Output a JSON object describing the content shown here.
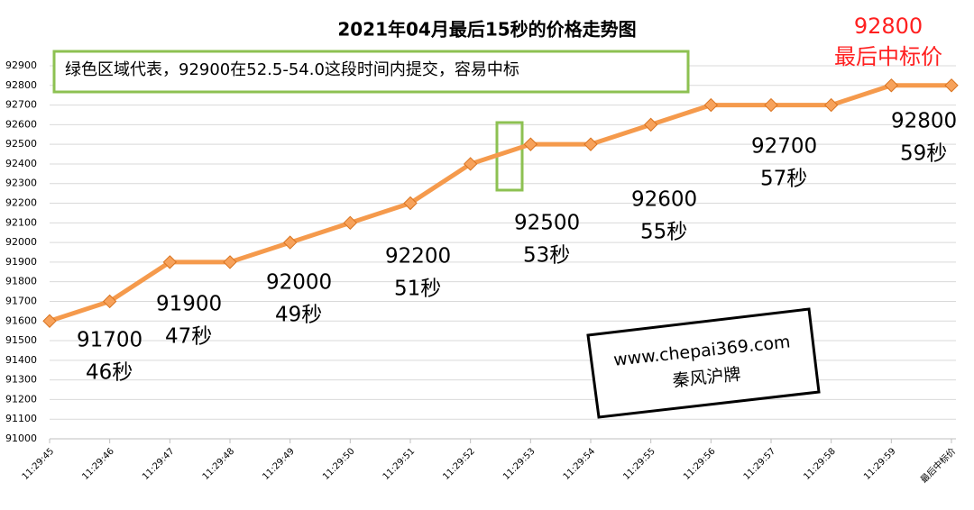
{
  "chart_data": {
    "type": "line",
    "title": "2021年04月最后15秒的价格走势图",
    "categories": [
      "11:29:45",
      "11:29:46",
      "11:29:47",
      "11:29:48",
      "11:29:49",
      "11:29:50",
      "11:29:51",
      "11:29:52",
      "11:29:53",
      "11:29:54",
      "11:29:55",
      "11:29:56",
      "11:29:57",
      "11:29:58",
      "11:29:59",
      "最后中标价"
    ],
    "values": [
      91600,
      91700,
      91900,
      91900,
      92000,
      92100,
      92200,
      92400,
      92500,
      92500,
      92600,
      92700,
      92700,
      92700,
      92800,
      92800
    ],
    "color": "#f59a4c",
    "ylim": [
      91000,
      92900
    ],
    "yticks": [
      91000,
      91100,
      91200,
      91300,
      91400,
      91500,
      91600,
      91700,
      91800,
      91900,
      92000,
      92100,
      92200,
      92300,
      92400,
      92500,
      92600,
      92700,
      92800,
      92900
    ],
    "grid": true,
    "note_box": "绿色区域代表，92900在52.5-54.0这段时间内提交，容易中标",
    "final_label": [
      "92800",
      "最后中标价"
    ],
    "annotations": [
      [
        "91700",
        "46秒"
      ],
      [
        "91900",
        "47秒"
      ],
      [
        "92000",
        "49秒"
      ],
      [
        "92200",
        "51秒"
      ],
      [
        "92500",
        "53秒"
      ],
      [
        "92600",
        "55秒"
      ],
      [
        "92700",
        "57秒"
      ],
      [
        "92800",
        "59秒"
      ]
    ],
    "watermark": [
      "www.chepai369.com",
      "秦风沪牌"
    ]
  }
}
